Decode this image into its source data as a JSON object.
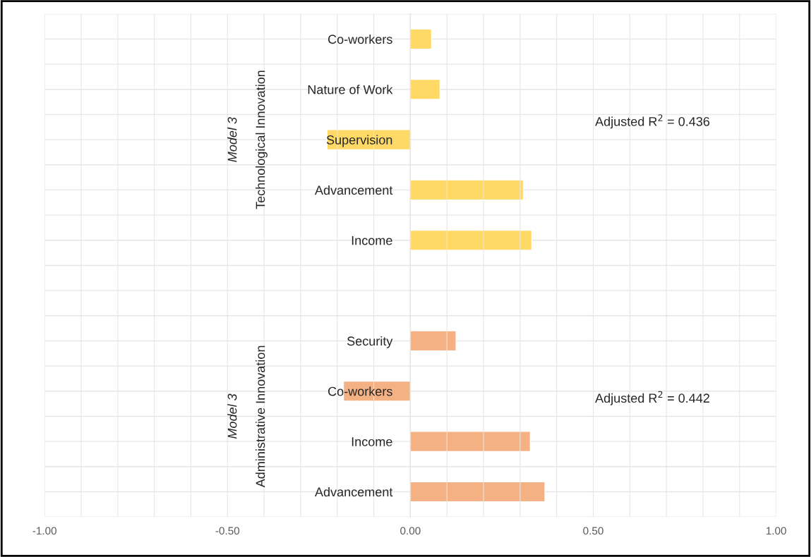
{
  "chart_data": {
    "type": "bar",
    "orientation": "horizontal",
    "categories": [
      "Co-workers",
      "Nature of Work",
      "Supervision",
      "Advancement",
      "Income",
      null,
      "Security",
      "Co-workers",
      "Income",
      "Advancement"
    ],
    "values": [
      0.058,
      0.081,
      -0.228,
      0.309,
      0.332,
      null,
      0.125,
      -0.183,
      0.328,
      0.368
    ],
    "colors": [
      "#ffd966",
      "#ffd966",
      "#ffd966",
      "#ffd966",
      "#ffd966",
      null,
      "#f4b183",
      "#f4b183",
      "#f4b183",
      "#f4b183"
    ],
    "xlim": [
      -1.0,
      1.0
    ],
    "xticks": [
      {
        "value": -1.0,
        "label": "-1.00"
      },
      {
        "value": -0.9,
        "label": null
      },
      {
        "value": -0.8,
        "label": null
      },
      {
        "value": -0.7,
        "label": null
      },
      {
        "value": -0.6,
        "label": null
      },
      {
        "value": -0.5,
        "label": "-0.50"
      },
      {
        "value": -0.4,
        "label": null
      },
      {
        "value": -0.3,
        "label": null
      },
      {
        "value": -0.2,
        "label": null
      },
      {
        "value": -0.1,
        "label": null
      },
      {
        "value": 0.0,
        "label": "0.00"
      },
      {
        "value": 0.1,
        "label": null
      },
      {
        "value": 0.2,
        "label": null
      },
      {
        "value": 0.3,
        "label": null
      },
      {
        "value": 0.4,
        "label": null
      },
      {
        "value": 0.5,
        "label": "0.50"
      },
      {
        "value": 0.6,
        "label": null
      },
      {
        "value": 0.7,
        "label": null
      },
      {
        "value": 0.8,
        "label": null
      },
      {
        "value": 0.9,
        "label": null
      },
      {
        "value": 1.0,
        "label": "1.00"
      }
    ],
    "grid": true,
    "annotations": [
      "Model 3",
      "Technological Innovation",
      "Adjusted R$^{2}$ = 0.436",
      "Model 3",
      "Administrative Innovation",
      "Adjusted R$^{2}$ = 0.442"
    ]
  }
}
